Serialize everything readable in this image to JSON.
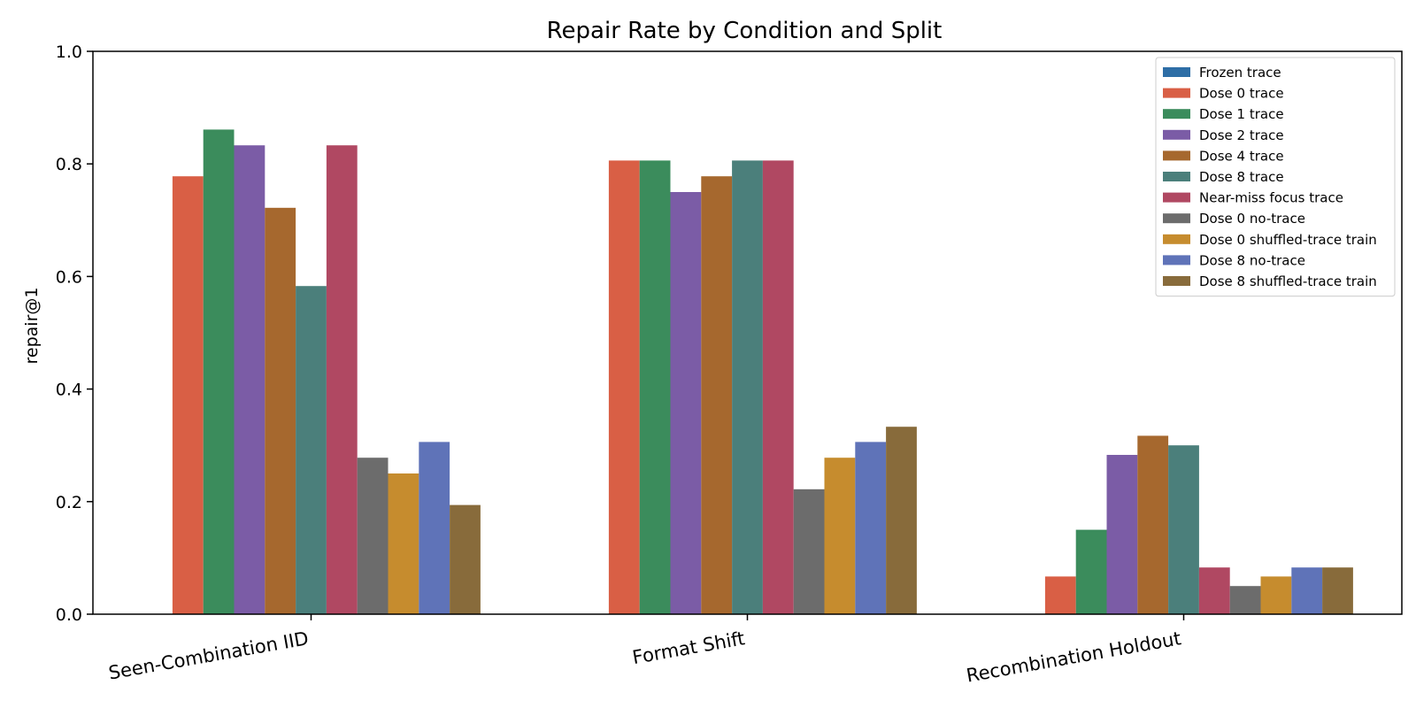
{
  "chart_data": {
    "type": "bar",
    "title": "Repair Rate by Condition and Split",
    "xlabel": "",
    "ylabel": "repair@1",
    "ylim": [
      0,
      1.0
    ],
    "yticks": [
      "0.0",
      "0.2",
      "0.4",
      "0.6",
      "0.8",
      "1.0"
    ],
    "grid": false,
    "legend_position": "top-right",
    "categories": [
      "Seen-Combination IID",
      "Format Shift",
      "Recombination Holdout"
    ],
    "series": [
      {
        "name": "Frozen trace",
        "color": "#2e6ea6",
        "values": [
          0.0,
          0.0,
          0.0
        ]
      },
      {
        "name": "Dose 0 trace",
        "color": "#d95f45",
        "values": [
          0.778,
          0.806,
          0.067
        ]
      },
      {
        "name": "Dose 1 trace",
        "color": "#3b8c5c",
        "values": [
          0.861,
          0.806,
          0.15
        ]
      },
      {
        "name": "Dose 2 trace",
        "color": "#7b5ca6",
        "values": [
          0.833,
          0.75,
          0.283
        ]
      },
      {
        "name": "Dose 4 trace",
        "color": "#a6682e",
        "values": [
          0.722,
          0.778,
          0.317
        ]
      },
      {
        "name": "Dose 8 trace",
        "color": "#4b7f7b",
        "values": [
          0.583,
          0.806,
          0.3
        ]
      },
      {
        "name": "Near-miss focus trace",
        "color": "#b04862",
        "values": [
          0.833,
          0.806,
          0.083
        ]
      },
      {
        "name": "Dose 0 no-trace",
        "color": "#6c6c6c",
        "values": [
          0.278,
          0.222,
          0.05
        ]
      },
      {
        "name": "Dose 0 shuffled-trace train",
        "color": "#c68c2e",
        "values": [
          0.25,
          0.278,
          0.067
        ]
      },
      {
        "name": "Dose 8 no-trace",
        "color": "#5f73b8",
        "values": [
          0.306,
          0.306,
          0.083
        ]
      },
      {
        "name": "Dose 8 shuffled-trace train",
        "color": "#886b3b",
        "values": [
          0.194,
          0.333,
          0.083
        ]
      }
    ]
  }
}
